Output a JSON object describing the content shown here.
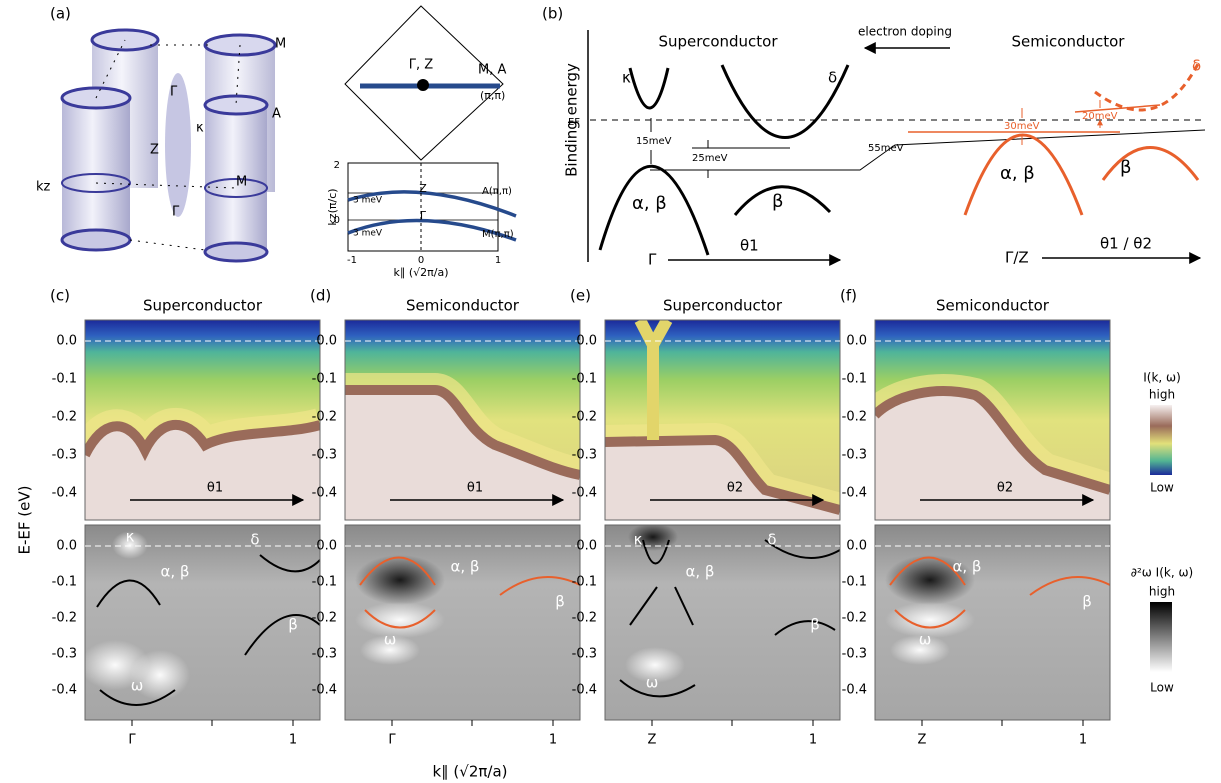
{
  "panel_a": {
    "label": "(a)",
    "bz_labels": [
      "M",
      "A",
      "Z",
      "Γ",
      "κ",
      "M",
      "Γ",
      "kz"
    ],
    "diamond": {
      "center": "Γ, Z",
      "edge": "M, A",
      "corner": "(π,π)"
    },
    "inset": {
      "y_label": "kz(π/c)",
      "y_ticks": [
        "2",
        "0"
      ],
      "top_point": "Z",
      "bottom_point": "Γ",
      "top_right": "A(π,π)",
      "bottom_right": "M(π,π)",
      "gap_top": "3 meV",
      "gap_bottom": "3 meV",
      "x_ticks": [
        "-1",
        "0",
        "1"
      ],
      "x_label": "k∥ (√2π/a)"
    }
  },
  "panel_b": {
    "label": "(b)",
    "left_title": "Superconductor",
    "right_title": "Semiconductor",
    "doping": "electron doping",
    "y_label": "Binding energy",
    "ef": "EF",
    "left_kappa": "κ",
    "left_delta": "δ",
    "gap_15": "15meV",
    "gap_25": "25meV",
    "gap_55": "55meV",
    "left_ab": "α, β",
    "left_b": "β",
    "left_gamma": "Γ",
    "left_cut": "θ1",
    "right_delta": "δ",
    "right_30": "30meV",
    "right_20": "20meV",
    "right_ab": "α, β",
    "right_b": "β",
    "right_gamma": "Γ/Z",
    "right_cut": "θ1 / θ2"
  },
  "panels": [
    {
      "label": "(c)",
      "title": "Superconductor",
      "cut": "θ1",
      "annotations": [
        "κ",
        "α, β",
        "δ",
        "β",
        "ω"
      ],
      "x_ticks": [
        "Γ",
        "1"
      ]
    },
    {
      "label": "(d)",
      "title": "Semiconductor",
      "cut": "θ1",
      "annotations": [
        "α, β",
        "β",
        "ω"
      ],
      "x_ticks": [
        "Γ",
        "1"
      ]
    },
    {
      "label": "(e)",
      "title": "Superconductor",
      "cut": "θ2",
      "annotations": [
        "κ",
        "α, β",
        "δ",
        "β",
        "ω"
      ],
      "x_ticks": [
        "Z",
        "1"
      ]
    },
    {
      "label": "(f)",
      "title": "Semiconductor",
      "cut": "θ2",
      "annotations": [
        "α, β",
        "β",
        "ω"
      ],
      "x_ticks": [
        "Z",
        "1"
      ]
    }
  ],
  "y_axis": {
    "label": "E-EF (eV)",
    "ticks": [
      "0.0",
      "-0.1",
      "-0.2",
      "-0.3",
      "-0.4"
    ]
  },
  "x_axis_label": "k∥ (√2π/a)",
  "colorbars": {
    "upper_title": "I(k, ω)",
    "upper_high": "high",
    "upper_low": "Low",
    "lower_title": "∂²ω I(k, ω)",
    "lower_high": "high",
    "lower_low": "Low"
  }
}
